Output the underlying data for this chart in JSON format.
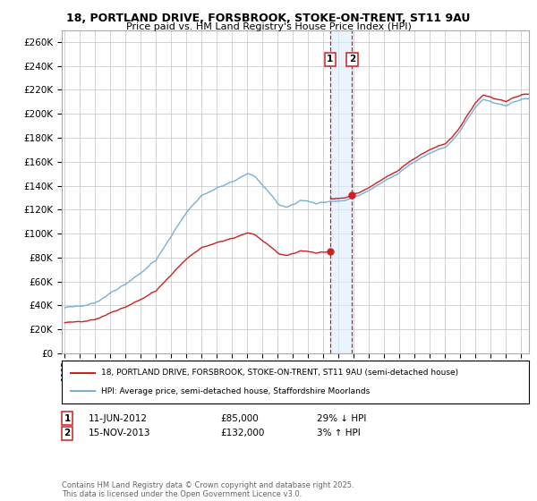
{
  "title1": "18, PORTLAND DRIVE, FORSBROOK, STOKE-ON-TRENT, ST11 9AU",
  "title2": "Price paid vs. HM Land Registry's House Price Index (HPI)",
  "ylim": [
    0,
    270000
  ],
  "yticks": [
    0,
    20000,
    40000,
    60000,
    80000,
    100000,
    120000,
    140000,
    160000,
    180000,
    200000,
    220000,
    240000,
    260000
  ],
  "xlim_start": 1994.8,
  "xlim_end": 2025.5,
  "sale1_date": 2012.44,
  "sale1_price": 85000,
  "sale1_label": "1",
  "sale2_date": 2013.88,
  "sale2_price": 132000,
  "sale2_label": "2",
  "legend_line1": "18, PORTLAND DRIVE, FORSBROOK, STOKE-ON-TRENT, ST11 9AU (semi-detached house)",
  "legend_line2": "HPI: Average price, semi-detached house, Staffordshire Moorlands",
  "footer": "Contains HM Land Registry data © Crown copyright and database right 2025.\nThis data is licensed under the Open Government Licence v3.0.",
  "hpi_color": "#7bafd4",
  "price_color": "#cc2222",
  "sale_dot_color": "#cc2222",
  "vline_color": "#cc2222",
  "vband_color": "#ddeeff",
  "grid_color": "#cccccc",
  "background_color": "#ffffff"
}
